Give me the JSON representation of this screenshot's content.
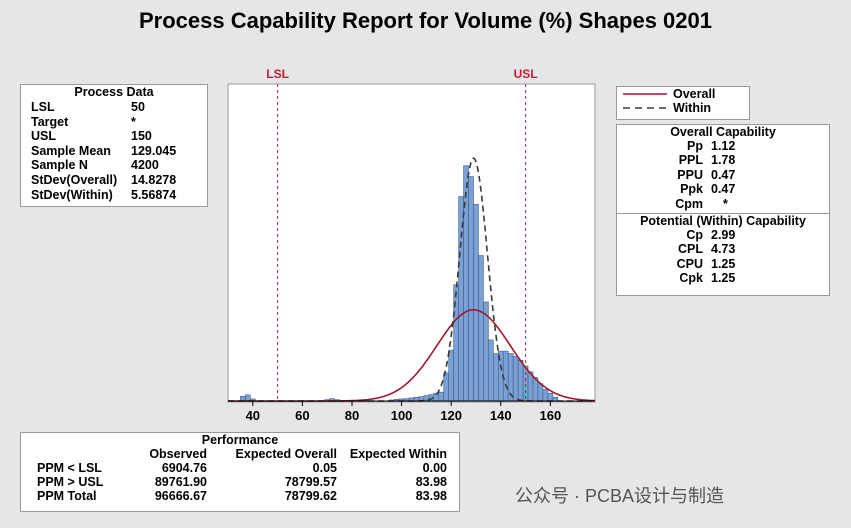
{
  "chart_data": {
    "type": "histogram",
    "title": "Process Capability Report for Volume (%) Shapes 0201",
    "x_ticks": [
      40,
      60,
      80,
      100,
      120,
      140,
      160
    ],
    "xlim": [
      30,
      178
    ],
    "ylim": [
      0,
      0.0935
    ],
    "bin_width": 2,
    "bins": [
      {
        "x": 36,
        "density": 0.0014
      },
      {
        "x": 38,
        "density": 0.0018
      },
      {
        "x": 40,
        "density": 0.0006
      },
      {
        "x": 70,
        "density": 0.0004
      },
      {
        "x": 72,
        "density": 0.0007
      },
      {
        "x": 74,
        "density": 0.0004
      },
      {
        "x": 96,
        "density": 0.0003
      },
      {
        "x": 98,
        "density": 0.0005
      },
      {
        "x": 100,
        "density": 0.0006
      },
      {
        "x": 102,
        "density": 0.0007
      },
      {
        "x": 104,
        "density": 0.0009
      },
      {
        "x": 106,
        "density": 0.0011
      },
      {
        "x": 108,
        "density": 0.0013
      },
      {
        "x": 110,
        "density": 0.0016
      },
      {
        "x": 112,
        "density": 0.0019
      },
      {
        "x": 114,
        "density": 0.0023
      },
      {
        "x": 116,
        "density": 0.0026
      },
      {
        "x": 118,
        "density": 0.0083
      },
      {
        "x": 120,
        "density": 0.015
      },
      {
        "x": 122,
        "density": 0.0343
      },
      {
        "x": 124,
        "density": 0.0603
      },
      {
        "x": 126,
        "density": 0.0694
      },
      {
        "x": 128,
        "density": 0.0662
      },
      {
        "x": 130,
        "density": 0.058
      },
      {
        "x": 132,
        "density": 0.0429
      },
      {
        "x": 134,
        "density": 0.0292
      },
      {
        "x": 136,
        "density": 0.018
      },
      {
        "x": 138,
        "density": 0.014
      },
      {
        "x": 140,
        "density": 0.0147
      },
      {
        "x": 142,
        "density": 0.0147
      },
      {
        "x": 144,
        "density": 0.014
      },
      {
        "x": 146,
        "density": 0.0132
      },
      {
        "x": 148,
        "density": 0.012
      },
      {
        "x": 150,
        "density": 0.0103
      },
      {
        "x": 152,
        "density": 0.0086
      },
      {
        "x": 154,
        "density": 0.0069
      },
      {
        "x": 156,
        "density": 0.0051
      },
      {
        "x": 158,
        "density": 0.0034
      },
      {
        "x": 160,
        "density": 0.0023
      },
      {
        "x": 162,
        "density": 0.0011
      }
    ],
    "curves": [
      {
        "name": "Overall",
        "mean": 129.045,
        "sd": 14.8278,
        "color": "#a0182a",
        "dash": false
      },
      {
        "name": "Within",
        "mean": 129.045,
        "sd": 5.56874,
        "color": "#3a3a3a",
        "dash": true
      }
    ],
    "spec_lines": [
      {
        "label": "LSL",
        "value": 50
      },
      {
        "label": "USL",
        "value": 150
      }
    ],
    "bar_color": "#7aa0d4",
    "bar_stroke": "#3d5f8c",
    "spec_color": "#c0203a"
  },
  "process_data": {
    "title": "Process Data",
    "rows": [
      {
        "label": "LSL",
        "value": "50"
      },
      {
        "label": "Target",
        "value": "*"
      },
      {
        "label": "USL",
        "value": "150"
      },
      {
        "label": "Sample Mean",
        "value": "129.045"
      },
      {
        "label": "Sample N",
        "value": "4200"
      },
      {
        "label": "StDev(Overall)",
        "value": "14.8278"
      },
      {
        "label": "StDev(Within)",
        "value": "5.56874"
      }
    ]
  },
  "legend": {
    "overall": "Overall",
    "within": "Within"
  },
  "overall_capability": {
    "title": "Overall Capability",
    "rows": [
      {
        "label": "Pp",
        "value": "1.12"
      },
      {
        "label": "PPL",
        "value": "1.78"
      },
      {
        "label": "PPU",
        "value": "0.47"
      },
      {
        "label": "Ppk",
        "value": "0.47"
      },
      {
        "label": "Cpm",
        "value": "*"
      }
    ]
  },
  "within_capability": {
    "title": "Potential (Within) Capability",
    "rows": [
      {
        "label": "Cp",
        "value": "2.99"
      },
      {
        "label": "CPL",
        "value": "4.73"
      },
      {
        "label": "CPU",
        "value": "1.25"
      },
      {
        "label": "Cpk",
        "value": "1.25"
      }
    ]
  },
  "performance": {
    "title": "Performance",
    "headers": [
      "",
      "Observed",
      "Expected Overall",
      "Expected Within"
    ],
    "rows": [
      [
        "PPM < LSL",
        "6904.76",
        "0.05",
        "0.00"
      ],
      [
        "PPM > USL",
        "89761.90",
        "78799.57",
        "83.98"
      ],
      [
        "PPM Total",
        "96666.67",
        "78799.62",
        "83.98"
      ]
    ]
  },
  "watermark": "公众号 · PCBA设计与制造"
}
